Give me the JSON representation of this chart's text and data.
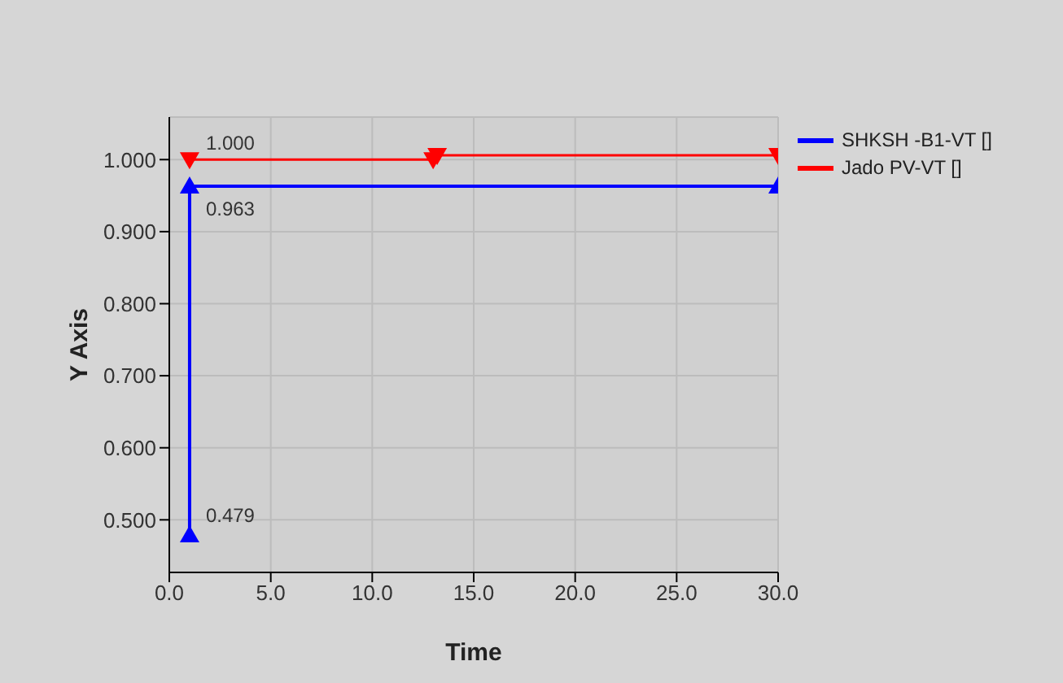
{
  "chart_data": {
    "type": "line",
    "xlabel": "Time",
    "ylabel": "Y Axis",
    "xlim": [
      0,
      30
    ],
    "ylim": [
      0.427,
      1.059
    ],
    "xticks": [
      {
        "value": 0,
        "label": "0.0"
      },
      {
        "value": 5,
        "label": "5.0"
      },
      {
        "value": 10,
        "label": "10.0"
      },
      {
        "value": 15,
        "label": "15.0"
      },
      {
        "value": 20,
        "label": "20.0"
      },
      {
        "value": 25,
        "label": "25.0"
      },
      {
        "value": 30,
        "label": "30.0"
      }
    ],
    "yticks": [
      {
        "value": 0.5,
        "label": "0.500"
      },
      {
        "value": 0.6,
        "label": "0.600"
      },
      {
        "value": 0.7,
        "label": "0.700"
      },
      {
        "value": 0.8,
        "label": "0.800"
      },
      {
        "value": 0.9,
        "label": "0.900"
      },
      {
        "value": 1.0,
        "label": "1.000"
      }
    ],
    "series": [
      {
        "name": "SHKSH -B1-VT []",
        "color": "#0000ff",
        "x": [
          1,
          1,
          30
        ],
        "values": [
          0.479,
          0.963,
          0.963
        ],
        "value_labels": [
          "0.479",
          "0.963",
          null
        ]
      },
      {
        "name": "Jado PV-VT []",
        "color": "#ff0000",
        "x": [
          1,
          13,
          13.2,
          30
        ],
        "values": [
          1.0,
          1.0,
          1.006,
          1.006
        ],
        "value_labels": [
          "1.000",
          null,
          null,
          null
        ]
      }
    ],
    "grid": true,
    "legend": "right",
    "marker": "triangle",
    "line_style": "solid"
  }
}
